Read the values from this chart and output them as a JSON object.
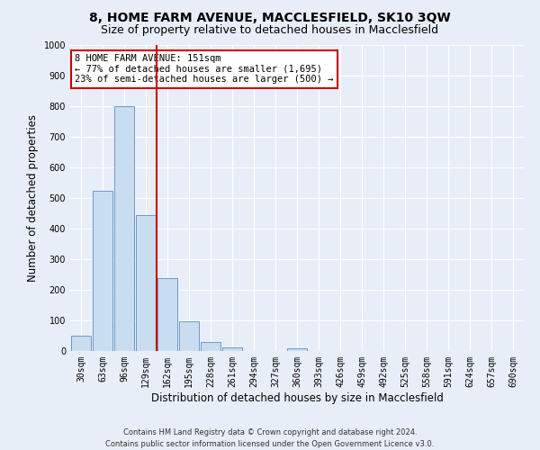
{
  "title": "8, HOME FARM AVENUE, MACCLESFIELD, SK10 3QW",
  "subtitle": "Size of property relative to detached houses in Macclesfield",
  "xlabel": "Distribution of detached houses by size in Macclesfield",
  "ylabel": "Number of detached properties",
  "categories": [
    "30sqm",
    "63sqm",
    "96sqm",
    "129sqm",
    "162sqm",
    "195sqm",
    "228sqm",
    "261sqm",
    "294sqm",
    "327sqm",
    "360sqm",
    "393sqm",
    "426sqm",
    "459sqm",
    "492sqm",
    "525sqm",
    "558sqm",
    "591sqm",
    "624sqm",
    "657sqm",
    "690sqm"
  ],
  "values": [
    50,
    525,
    800,
    445,
    238,
    97,
    30,
    13,
    0,
    0,
    10,
    0,
    0,
    0,
    0,
    0,
    0,
    0,
    0,
    0,
    0
  ],
  "bar_color": "#c9ddf0",
  "bar_edge_color": "#5b8dc0",
  "vline_x_index": 4,
  "vline_color": "#cc0000",
  "annotation_text": "8 HOME FARM AVENUE: 151sqm\n← 77% of detached houses are smaller (1,695)\n23% of semi-detached houses are larger (500) →",
  "annotation_box_color": "#ffffff",
  "annotation_box_edge_color": "#cc0000",
  "ylim": [
    0,
    1000
  ],
  "yticks": [
    0,
    100,
    200,
    300,
    400,
    500,
    600,
    700,
    800,
    900,
    1000
  ],
  "background_color": "#e8eef8",
  "grid_color": "#ffffff",
  "footer_line1": "Contains HM Land Registry data © Crown copyright and database right 2024.",
  "footer_line2": "Contains public sector information licensed under the Open Government Licence v3.0.",
  "title_fontsize": 10,
  "subtitle_fontsize": 9,
  "axis_label_fontsize": 8.5,
  "tick_fontsize": 7,
  "annotation_fontsize": 7.5,
  "footer_fontsize": 6
}
